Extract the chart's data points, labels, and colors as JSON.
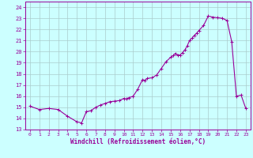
{
  "x_data": [
    0,
    1,
    2,
    3,
    4,
    5,
    5.5,
    6,
    6.5,
    7,
    7.5,
    8,
    8.5,
    9,
    9.5,
    10,
    10.25,
    10.5,
    11,
    11.5,
    12,
    12.25,
    12.5,
    13,
    13.5,
    14,
    14.5,
    15,
    15.25,
    15.5,
    15.75,
    16,
    16.25,
    16.5,
    16.75,
    17,
    17.25,
    17.5,
    17.75,
    18,
    18.5,
    19,
    19.5,
    20,
    20.5,
    21,
    21.5,
    22,
    22.5,
    23
  ],
  "y_data": [
    15.1,
    14.8,
    14.9,
    14.8,
    14.2,
    13.7,
    13.6,
    14.6,
    14.7,
    15.0,
    15.2,
    15.35,
    15.5,
    15.55,
    15.6,
    15.8,
    15.75,
    15.85,
    16.0,
    16.65,
    17.5,
    17.4,
    17.6,
    17.65,
    17.9,
    18.5,
    19.1,
    19.5,
    19.65,
    19.85,
    19.7,
    19.7,
    19.9,
    20.15,
    20.5,
    21.0,
    21.2,
    21.45,
    21.65,
    21.9,
    22.35,
    23.2,
    23.1,
    23.05,
    23.0,
    22.8,
    20.9,
    16.0,
    16.1,
    14.9
  ],
  "line_color": "#990099",
  "marker_color": "#990099",
  "bg_color": "#ccffff",
  "grid_color": "#aacccc",
  "axis_color": "#990099",
  "xlabel": "Windchill (Refroidissement éolien,°C)",
  "xlim": [
    -0.5,
    23.5
  ],
  "ylim": [
    13,
    24.5
  ],
  "yticks": [
    13,
    14,
    15,
    16,
    17,
    18,
    19,
    20,
    21,
    22,
    23,
    24
  ],
  "xticks": [
    0,
    1,
    2,
    3,
    4,
    5,
    6,
    7,
    8,
    9,
    10,
    11,
    12,
    13,
    14,
    15,
    16,
    17,
    18,
    19,
    20,
    21,
    22,
    23
  ],
  "marker_size": 2.5,
  "linewidth": 0.8
}
